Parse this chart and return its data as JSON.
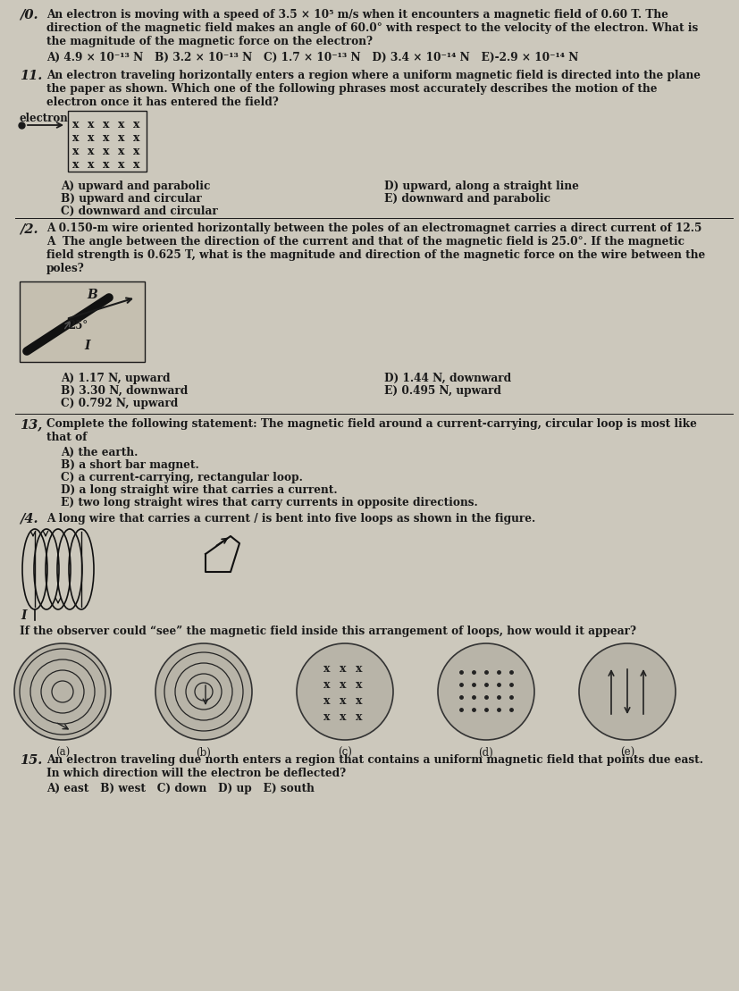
{
  "bg_color": "#ccc8bc",
  "text_color": "#1a1a1a",
  "page_width": 8.28,
  "page_height": 11.09,
  "q10_num": "/0.",
  "q10_body": "An electron is moving with a speed of 3.5 × 10⁵ m/s when it encounters a magnetic field of 0.60 T. The\ndirection of the magnetic field makes an angle of 60.0° with respect to the velocity of the electron. What is\nthe magnitude of the magnetic force on the electron?",
  "q10_choices": "A) 4.9 × 10⁻¹³ N   B) 3.2 × 10⁻¹³ N   C) 1.7 × 10⁻¹³ N   D) 3.4 × 10⁻¹⁴ N   E)-2.9 × 10⁻¹⁴ N",
  "q11_num": "11.",
  "q11_body": "An electron traveling horizontally enters a region where a uniform magnetic field is directed into the plane\nthe paper as shown. Which one of the following phrases most accurately describes the motion of the\nelectron once it has entered the field?",
  "q11_choices_left": [
    "A) upward and parabolic",
    "B) upward and circular",
    "C) downward and circular"
  ],
  "q11_choices_right": [
    "D) upward, along a straight line",
    "E) downward and parabolic"
  ],
  "q12_num": "/2.",
  "q12_body": "A 0.150-m wire oriented horizontally between the poles of an electromagnet carries a direct current of 12.5\nA  The angle between the direction of the current and that of the magnetic field is 25.0°. If the magnetic\nfield strength is 0.625 T, what is the magnitude and direction of the magnetic force on the wire between the\npoles?",
  "q12_choices_left": [
    "A) 1.17 N, upward",
    "B) 3.30 N, downward",
    "C) 0.792 N, upward"
  ],
  "q12_choices_right": [
    "D) 1.44 N, downward",
    "E) 0.495 N, upward"
  ],
  "q13_num": "13,",
  "q13_body": "Complete the following statement: The magnetic field around a current-carrying, circular loop is most like\nthat of",
  "q13_choices": [
    "A) the earth.",
    "B) a short bar magnet.",
    "C) a current-carrying, rectangular loop.",
    "D) a long straight wire that carries a current.",
    "E) two long straight wires that carry currents in opposite directions."
  ],
  "q14_num": "/4.",
  "q14_body": "A long wire that carries a current / is bent into five loops as shown in the figure.",
  "q14_subtext": "If the observer could “see” the magnetic field inside this arrangement of loops, how would it appear?",
  "q14_labels": [
    "(a)",
    "(b)",
    "(c)",
    "(d)",
    "(e)"
  ],
  "q15_num": "15.",
  "q15_body": "An electron traveling due north enters a region that contains a uniform magnetic field that points due east.\nIn which direction will the electron be deflected?",
  "q15_choices": "A) east   B) west   C) down   D) up   E) south"
}
